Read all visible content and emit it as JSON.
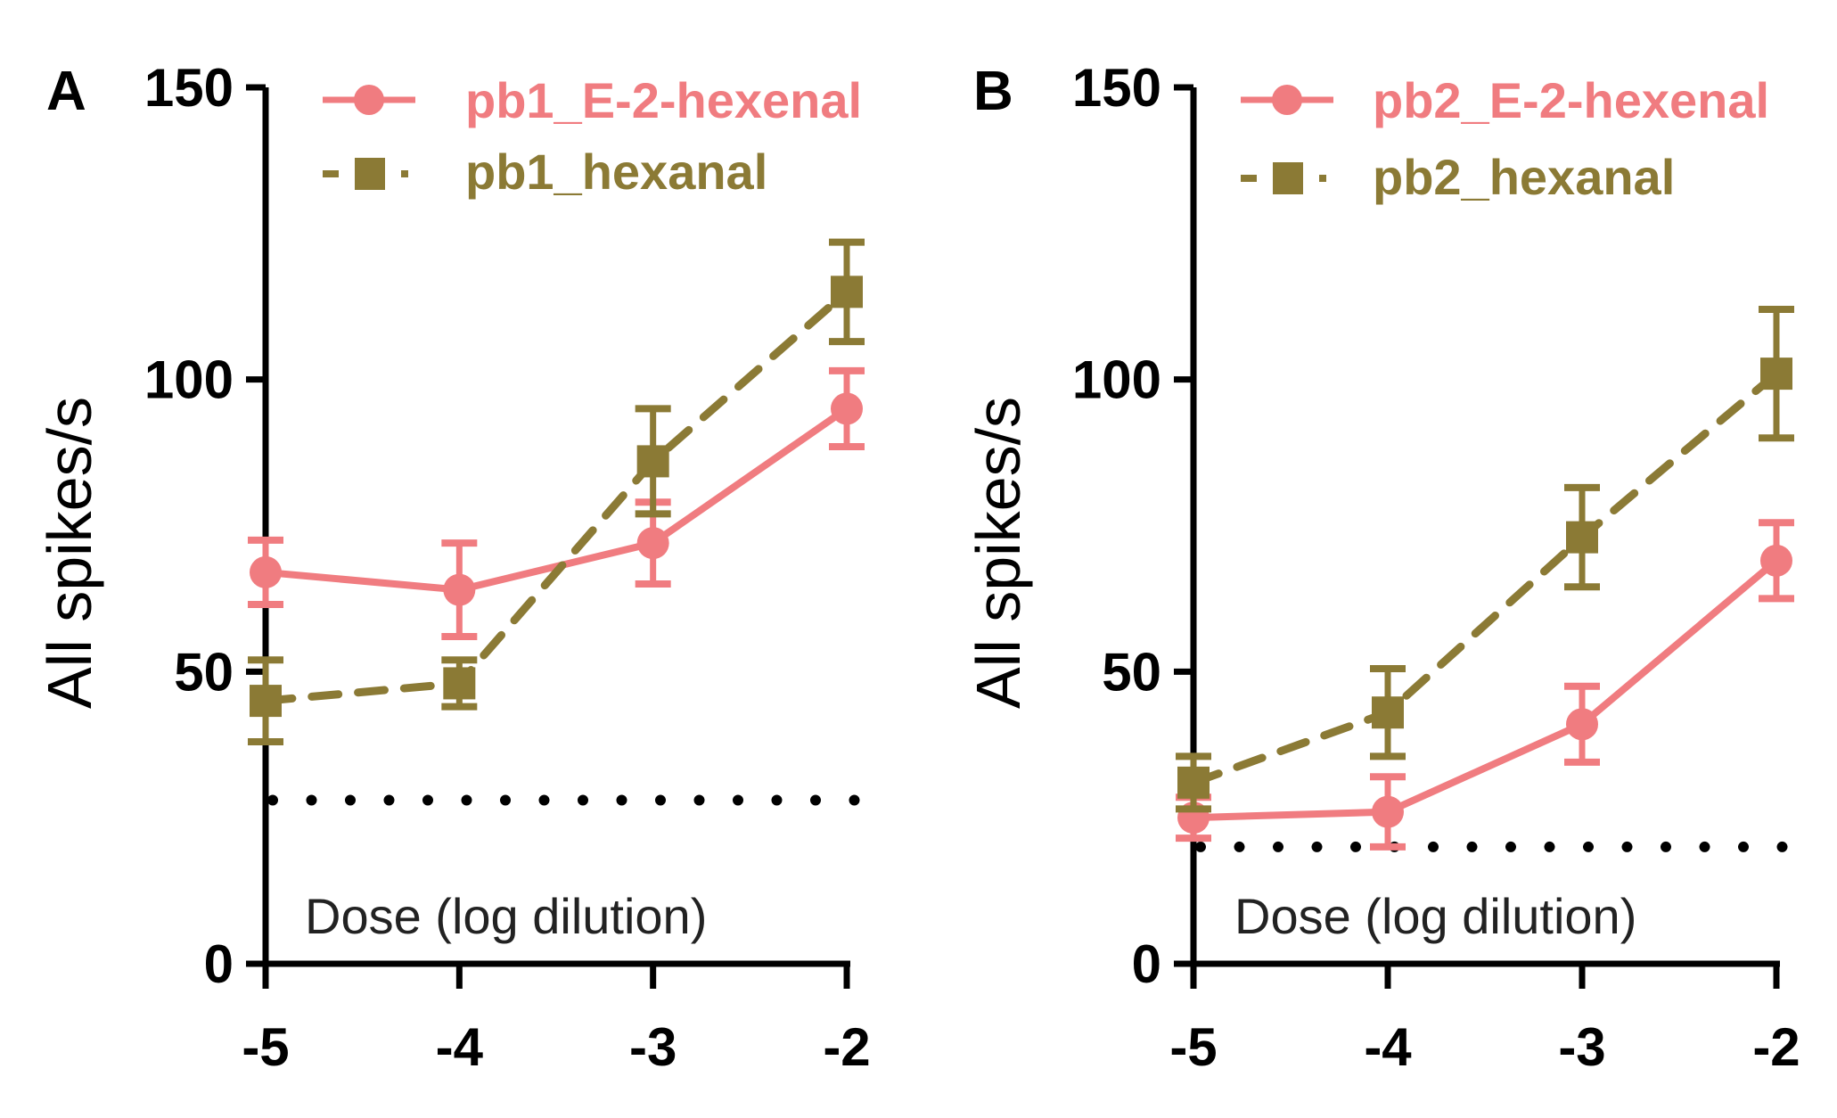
{
  "colors": {
    "e2hexenal": "#F07C80",
    "hexanal": "#8B7A35",
    "axis": "#000000",
    "baseline": "#000000"
  },
  "chart_data": [
    {
      "panel": "A",
      "type": "line",
      "ylabel": "All spikes/s",
      "xlabel": "Dose (log dilution)",
      "x": [
        -5,
        -4,
        -3,
        -2
      ],
      "x_ticks": [
        "-5",
        "-4",
        "-3",
        "-2"
      ],
      "ylim": [
        0,
        150
      ],
      "y_ticks": [
        "0",
        "50",
        "100",
        "150"
      ],
      "y_tick_values": [
        0,
        50,
        100,
        150
      ],
      "grid": false,
      "legend_position": "top",
      "baseline": 28,
      "series": [
        {
          "name": "pb1_E-2-hexenal",
          "color_key": "e2hexenal",
          "marker": "circle",
          "line": "solid",
          "values": [
            67,
            64,
            72,
            95
          ],
          "errors": [
            5.5,
            8,
            7,
            6.5
          ]
        },
        {
          "name": "pb1_hexanal",
          "color_key": "hexanal",
          "marker": "square",
          "line": "dashed",
          "values": [
            45,
            48,
            86,
            115
          ],
          "errors": [
            7,
            4,
            9,
            8.5
          ]
        }
      ]
    },
    {
      "panel": "B",
      "type": "line",
      "ylabel": "All spikes/s",
      "xlabel": "Dose (log dilution)",
      "x": [
        -5,
        -4,
        -3,
        -2
      ],
      "x_ticks": [
        "-5",
        "-4",
        "-3",
        "-2"
      ],
      "ylim": [
        0,
        150
      ],
      "y_ticks": [
        "0",
        "50",
        "100",
        "150"
      ],
      "y_tick_values": [
        0,
        50,
        100,
        150
      ],
      "grid": false,
      "legend_position": "top",
      "baseline": 20,
      "series": [
        {
          "name": "pb2_E-2-hexenal",
          "color_key": "e2hexenal",
          "marker": "circle",
          "line": "solid",
          "values": [
            25,
            26,
            41,
            69
          ],
          "errors": [
            3.5,
            6,
            6.5,
            6.5
          ]
        },
        {
          "name": "pb2_hexanal",
          "color_key": "hexanal",
          "marker": "square",
          "line": "dashed",
          "values": [
            31,
            43,
            73,
            101
          ],
          "errors": [
            4.5,
            7.5,
            8.5,
            11
          ]
        }
      ]
    }
  ]
}
